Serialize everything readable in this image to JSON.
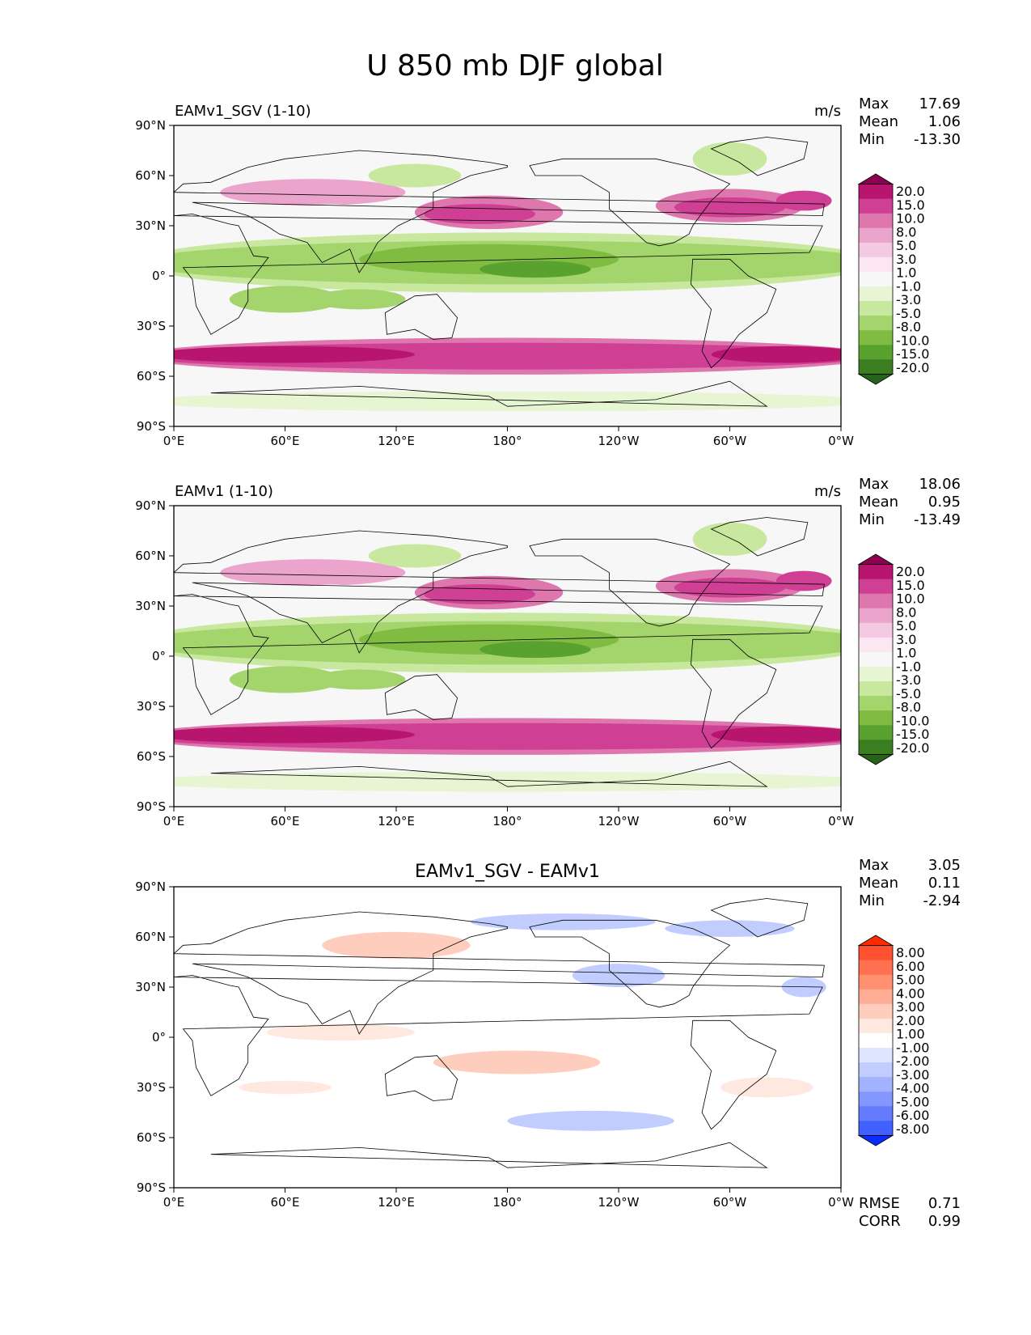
{
  "figure": {
    "title": "U 850 mb DJF global"
  },
  "axes": {
    "x_ticks": [
      "0°E",
      "60°E",
      "120°E",
      "180°",
      "120°W",
      "60°W",
      "0°W"
    ],
    "y_ticks": [
      "90°N",
      "60°N",
      "30°N",
      "0°",
      "30°S",
      "60°S",
      "90°S"
    ]
  },
  "chart_data": [
    {
      "type": "heatmap",
      "title": "EAMv1_SGV (1-10)",
      "units": "m/s",
      "stats": {
        "max_label": "Max",
        "max": "17.69",
        "mean_label": "Mean",
        "mean": "1.06",
        "min_label": "Min",
        "min": "-13.30"
      },
      "xlim": [
        0,
        360
      ],
      "ylim": [
        -90,
        90
      ],
      "colorbar": {
        "levels": [
          "20.0",
          "15.0",
          "10.0",
          "8.0",
          "5.0",
          "3.0",
          "1.0",
          "-1.0",
          "-3.0",
          "-5.0",
          "-8.0",
          "-10.0",
          "-15.0",
          "-20.0"
        ],
        "colors": [
          "#8e0152",
          "#b8156f",
          "#cf3f93",
          "#de77ae",
          "#eba5cc",
          "#f4c9e2",
          "#fbe6f1",
          "#f7f7f7",
          "#e7f5d3",
          "#c9e89f",
          "#a4d46c",
          "#7fbc41",
          "#5aa22f",
          "#3b7e22",
          "#276419"
        ],
        "extend": "both"
      }
    },
    {
      "type": "heatmap",
      "title": "EAMv1 (1-10)",
      "units": "m/s",
      "stats": {
        "max_label": "Max",
        "max": "18.06",
        "mean_label": "Mean",
        "mean": "0.95",
        "min_label": "Min",
        "min": "-13.49"
      },
      "xlim": [
        0,
        360
      ],
      "ylim": [
        -90,
        90
      ],
      "colorbar": {
        "levels": [
          "20.0",
          "15.0",
          "10.0",
          "8.0",
          "5.0",
          "3.0",
          "1.0",
          "-1.0",
          "-3.0",
          "-5.0",
          "-8.0",
          "-10.0",
          "-15.0",
          "-20.0"
        ],
        "colors": [
          "#8e0152",
          "#b8156f",
          "#cf3f93",
          "#de77ae",
          "#eba5cc",
          "#f4c9e2",
          "#fbe6f1",
          "#f7f7f7",
          "#e7f5d3",
          "#c9e89f",
          "#a4d46c",
          "#7fbc41",
          "#5aa22f",
          "#3b7e22",
          "#276419"
        ],
        "extend": "both"
      }
    },
    {
      "type": "heatmap",
      "title": "EAMv1_SGV - EAMv1",
      "units": "",
      "stats": {
        "max_label": "Max",
        "max": "3.05",
        "mean_label": "Mean",
        "mean": "0.11",
        "min_label": "Min",
        "min": "-2.94"
      },
      "metrics": {
        "rmse_label": "RMSE",
        "rmse": "0.71",
        "corr_label": "CORR",
        "corr": "0.99"
      },
      "xlim": [
        0,
        360
      ],
      "ylim": [
        -90,
        90
      ],
      "colorbar": {
        "levels": [
          "8.00",
          "6.00",
          "5.00",
          "4.00",
          "3.00",
          "2.00",
          "1.00",
          "-1.00",
          "-2.00",
          "-3.00",
          "-4.00",
          "-5.00",
          "-6.00",
          "-8.00"
        ],
        "colors": [
          "#ff2a00",
          "#ff5030",
          "#ff7050",
          "#ff9070",
          "#ffae95",
          "#ffcdbd",
          "#ffe8df",
          "#ffffff",
          "#dfe6ff",
          "#c1ccff",
          "#a3b2ff",
          "#8497ff",
          "#667cff",
          "#4060ff",
          "#0a2cff"
        ],
        "extend": "both"
      }
    }
  ]
}
